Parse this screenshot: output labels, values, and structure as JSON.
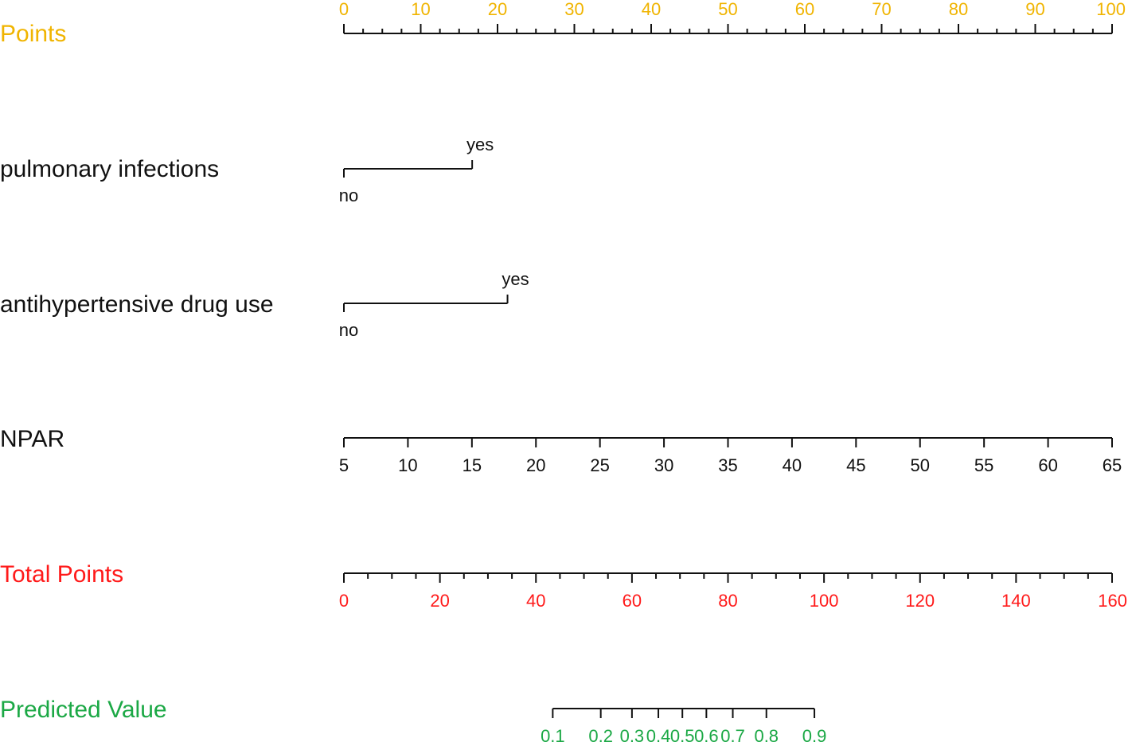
{
  "chart_data": {
    "type": "nomogram",
    "colors": {
      "points": "#F0B400",
      "variable": "#111111",
      "total_points": "#FF1A1A",
      "predicted": "#1BA845"
    },
    "points_axis": {
      "label": "Points",
      "range": [
        0,
        100
      ],
      "major_ticks": [
        0,
        10,
        20,
        30,
        40,
        50,
        60,
        70,
        80,
        90,
        100
      ],
      "tick_labels": [
        "0",
        "10",
        "20",
        "30",
        "40",
        "50",
        "60",
        "70",
        "80",
        "90",
        "100"
      ],
      "minor_step": 2.5
    },
    "variables": [
      {
        "label": "pulmonary infections",
        "type": "categorical",
        "levels": [
          {
            "label": "no",
            "points": 0
          },
          {
            "label": "yes",
            "points": 16.7
          }
        ]
      },
      {
        "label": "antihypertensive drug use",
        "type": "categorical",
        "levels": [
          {
            "label": "no",
            "points": 0
          },
          {
            "label": "yes",
            "points": 21.3
          }
        ]
      },
      {
        "label": "NPAR",
        "type": "continuous",
        "range": [
          5,
          65
        ],
        "points_range": [
          0,
          100
        ],
        "ticks": [
          5,
          10,
          15,
          20,
          25,
          30,
          35,
          40,
          45,
          50,
          55,
          60,
          65
        ],
        "tick_labels": [
          "5",
          "10",
          "15",
          "20",
          "25",
          "30",
          "35",
          "40",
          "45",
          "50",
          "55",
          "60",
          "65"
        ]
      }
    ],
    "total_points_axis": {
      "label": "Total Points",
      "range": [
        0,
        160
      ],
      "major_ticks": [
        0,
        20,
        40,
        60,
        80,
        100,
        120,
        140,
        160
      ],
      "tick_labels": [
        "0",
        "20",
        "40",
        "60",
        "80",
        "100",
        "120",
        "140",
        "160"
      ],
      "minor_step": 5
    },
    "predicted_axis": {
      "label": "Predicted Value",
      "ticks": [
        {
          "label": "0.1",
          "total_points": 43.5
        },
        {
          "label": "0.2",
          "total_points": 53.5
        },
        {
          "label": "0.3",
          "total_points": 60.0
        },
        {
          "label": "0.4",
          "total_points": 65.5
        },
        {
          "label": "0.5",
          "total_points": 70.5
        },
        {
          "label": "0.6",
          "total_points": 75.5
        },
        {
          "label": "0.7",
          "total_points": 81.0
        },
        {
          "label": "0.8",
          "total_points": 88.0
        },
        {
          "label": "0.9",
          "total_points": 98.0
        }
      ]
    }
  }
}
